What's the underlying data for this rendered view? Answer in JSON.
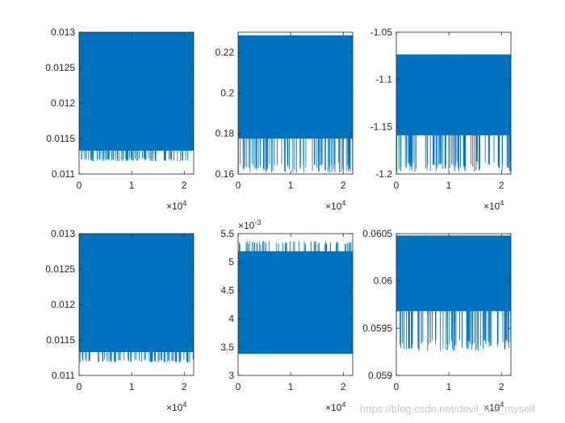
{
  "figure": {
    "watermark": "https://blog.csdn.net/devil_not_myself",
    "line_color": "#0072bd"
  },
  "chart_data": [
    {
      "type": "line",
      "xlim": [
        0,
        21800
      ],
      "ylim": [
        0.011,
        0.013
      ],
      "xticks": [
        0,
        10000,
        20000
      ],
      "xtick_labels": [
        "0",
        "1",
        "2"
      ],
      "x_exponent_label": "×10^4",
      "yticks": [
        0.011,
        0.0115,
        0.012,
        0.0125,
        0.013
      ],
      "ytick_labels": [
        "0.011",
        "0.0115",
        "0.012",
        "0.0125",
        "0.013"
      ],
      "y_exponent_label": "",
      "band_top": 0.013,
      "band_floor": 0.01133,
      "spike_min": 0.01118,
      "grid": false
    },
    {
      "type": "line",
      "xlim": [
        0,
        21800
      ],
      "ylim": [
        0.16,
        0.23
      ],
      "xticks": [
        0,
        10000,
        20000
      ],
      "xtick_labels": [
        "0",
        "1",
        "2"
      ],
      "x_exponent_label": "×10^4",
      "yticks": [
        0.16,
        0.18,
        0.2,
        0.22
      ],
      "ytick_labels": [
        "0.16",
        "0.18",
        "0.2",
        "0.22"
      ],
      "y_exponent_label": "",
      "band_top": 0.2285,
      "band_floor": 0.1775,
      "spike_min": 0.1605,
      "grid": false
    },
    {
      "type": "line",
      "xlim": [
        0,
        21800
      ],
      "ylim": [
        -1.2,
        -1.05
      ],
      "xticks": [
        0,
        10000,
        20000
      ],
      "xtick_labels": [
        "0",
        "1",
        "2"
      ],
      "x_exponent_label": "×10^4",
      "yticks": [
        -1.2,
        -1.15,
        -1.1,
        -1.05
      ],
      "ytick_labels": [
        "-1.2",
        "-1.15",
        "-1.1",
        "-1.05"
      ],
      "y_exponent_label": "",
      "band_top": -1.0735,
      "band_floor": -1.159,
      "spike_min": -1.198,
      "grid": false
    },
    {
      "type": "line",
      "xlim": [
        0,
        21800
      ],
      "ylim": [
        0.011,
        0.013
      ],
      "xticks": [
        0,
        10000,
        20000
      ],
      "xtick_labels": [
        "0",
        "1",
        "2"
      ],
      "x_exponent_label": "×10^4",
      "yticks": [
        0.011,
        0.0115,
        0.012,
        0.0125,
        0.013
      ],
      "ytick_labels": [
        "0.011",
        "0.0115",
        "0.012",
        "0.0125",
        "0.013"
      ],
      "y_exponent_label": "",
      "band_top": 0.013,
      "band_floor": 0.01133,
      "spike_min": 0.01118,
      "grid": false
    },
    {
      "type": "line",
      "xlim": [
        0,
        21800
      ],
      "ylim": [
        0.003,
        0.0055
      ],
      "xticks": [
        0,
        10000,
        20000
      ],
      "xtick_labels": [
        "0",
        "1",
        "2"
      ],
      "x_exponent_label": "×10^4",
      "yticks": [
        0.003,
        0.0035,
        0.004,
        0.0045,
        0.005,
        0.0055
      ],
      "ytick_labels": [
        "3",
        "3.5",
        "4",
        "4.5",
        "5",
        "5.5"
      ],
      "y_exponent_label": "×10^-3",
      "band_top": 0.00519,
      "band_floor": 0.00338,
      "spike_max": 0.00538,
      "grid": false
    },
    {
      "type": "line",
      "xlim": [
        0,
        21800
      ],
      "ylim": [
        0.059,
        0.0605
      ],
      "xticks": [
        0,
        10000,
        20000
      ],
      "xtick_labels": [
        "0",
        "1",
        "2"
      ],
      "x_exponent_label": "×10^4",
      "yticks": [
        0.059,
        0.0595,
        0.06,
        0.0605
      ],
      "ytick_labels": [
        "0.059",
        "0.0595",
        "0.06",
        "0.0605"
      ],
      "y_exponent_label": "",
      "band_top": 0.06048,
      "band_floor": 0.05968,
      "spike_min": 0.05925,
      "grid": false
    }
  ]
}
